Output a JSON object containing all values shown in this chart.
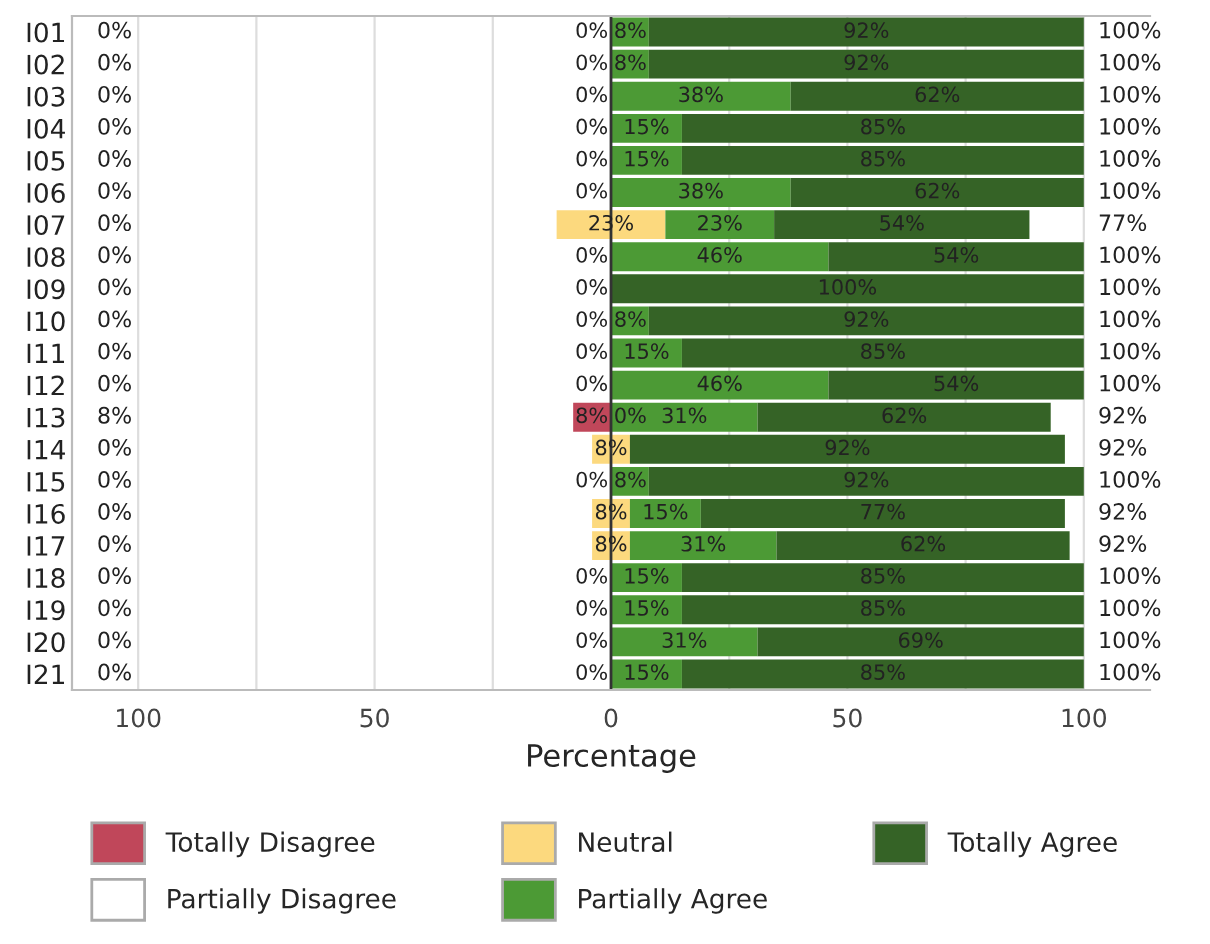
{
  "chart_data": {
    "type": "bar",
    "orientation": "horizontal",
    "xlabel": "Percentage",
    "categories": [
      "I01",
      "I02",
      "I03",
      "I04",
      "I05",
      "I06",
      "I07",
      "I08",
      "I09",
      "I10",
      "I11",
      "I12",
      "I13",
      "I14",
      "I15",
      "I16",
      "I17",
      "I18",
      "I19",
      "I20",
      "I21"
    ],
    "series": [
      {
        "name": "Totally Disagree",
        "color": "#c0475a",
        "values": [
          0,
          0,
          0,
          0,
          0,
          0,
          0,
          0,
          0,
          0,
          0,
          0,
          8,
          0,
          0,
          0,
          0,
          0,
          0,
          0,
          0
        ],
        "base": [
          null,
          null,
          null,
          null,
          null,
          null,
          null,
          null,
          null,
          null,
          null,
          null,
          -8,
          null,
          null,
          null,
          null,
          null,
          null,
          null,
          null
        ],
        "value_labels": [
          null,
          null,
          null,
          null,
          null,
          null,
          null,
          null,
          null,
          null,
          null,
          null,
          "8%",
          null,
          null,
          null,
          null,
          null,
          null,
          null,
          null
        ]
      },
      {
        "name": "Partially Disagree",
        "color": "#ffffff",
        "values": [
          0,
          0,
          0,
          0,
          0,
          0,
          0,
          0,
          0,
          0,
          0,
          0,
          0,
          0,
          0,
          0,
          0,
          0,
          0,
          0,
          0
        ],
        "base": [
          null,
          null,
          null,
          null,
          null,
          null,
          null,
          null,
          null,
          null,
          null,
          null,
          null,
          null,
          null,
          null,
          null,
          null,
          null,
          null,
          null
        ]
      },
      {
        "name": "Neutral",
        "color": "#fcd97e",
        "values": [
          0,
          0,
          0,
          0,
          0,
          0,
          23,
          0,
          0,
          0,
          0,
          0,
          0,
          8,
          0,
          8,
          8,
          0,
          0,
          0,
          0
        ],
        "base": [
          null,
          null,
          null,
          null,
          null,
          null,
          -11.5,
          null,
          null,
          null,
          null,
          null,
          null,
          -4,
          null,
          -4,
          -4,
          null,
          null,
          null,
          null
        ],
        "value_labels": [
          "0%",
          "0%",
          "0%",
          "0%",
          "0%",
          "0%",
          "23%",
          "0%",
          "0%",
          "0%",
          "0%",
          "0%",
          "0%",
          "8%",
          "0%",
          "8%",
          "8%",
          "0%",
          "0%",
          "0%",
          "0%"
        ]
      },
      {
        "name": "Partially Agree",
        "color": "#4c9a35",
        "values": [
          8,
          8,
          38,
          15,
          15,
          38,
          23,
          46,
          0,
          8,
          15,
          46,
          31,
          0,
          8,
          15,
          31,
          15,
          15,
          31,
          15
        ],
        "base": [
          0,
          0,
          0,
          0,
          0,
          0,
          11.5,
          0,
          null,
          0,
          0,
          0,
          0,
          null,
          0,
          4,
          4,
          0,
          0,
          0,
          0
        ],
        "value_labels": [
          "8%",
          "8%",
          "38%",
          "15%",
          "15%",
          "38%",
          "23%",
          "46%",
          null,
          "8%",
          "15%",
          "46%",
          "31%",
          null,
          "8%",
          "15%",
          "31%",
          "15%",
          "15%",
          "31%",
          "15%"
        ]
      },
      {
        "name": "Totally Agree",
        "color": "#356326",
        "values": [
          92,
          92,
          62,
          85,
          85,
          62,
          54,
          54,
          100,
          92,
          85,
          54,
          62,
          92,
          92,
          77,
          62,
          85,
          85,
          69,
          85
        ],
        "base": [
          8,
          8,
          38,
          15,
          15,
          38,
          34.5,
          46,
          0,
          8,
          15,
          46,
          31,
          4,
          8,
          19,
          35,
          15,
          15,
          31,
          15
        ],
        "value_labels": [
          "92%",
          "92%",
          "62%",
          "85%",
          "85%",
          "62%",
          "54%",
          "54%",
          "100%",
          "92%",
          "85%",
          "54%",
          "62%",
          "92%",
          "92%",
          "77%",
          "62%",
          "85%",
          "85%",
          "69%",
          "85%"
        ]
      }
    ],
    "xlim": [
      -114,
      114
    ],
    "xticks": [
      {
        "value": -100,
        "label": "100"
      },
      {
        "value": -75,
        "label": null
      },
      {
        "value": -50,
        "label": "50"
      },
      {
        "value": -25,
        "label": null
      },
      0,
      {
        "value": 25,
        "label": null
      },
      50,
      {
        "value": 75,
        "label": null
      },
      100
    ],
    "grid": "x",
    "ref_lines": [
      {
        "axis": "x",
        "value": 0,
        "color": "#333333"
      }
    ],
    "legend": "bottom",
    "annotations": [
      "0%",
      "0%",
      "0%",
      "0%",
      "0%",
      "0%",
      "0%",
      "0%",
      "0%",
      "0%",
      "0%",
      "0%",
      "8%",
      "0%",
      "0%",
      "0%",
      "0%",
      "0%",
      "0%",
      "0%",
      "0%",
      "100%",
      "100%",
      "100%",
      "100%",
      "100%",
      "100%",
      "77%",
      "100%",
      "100%",
      "100%",
      "100%",
      "100%",
      "92%",
      "92%",
      "100%",
      "92%",
      "92%",
      "100%",
      "100%",
      "100%",
      "100%"
    ]
  }
}
